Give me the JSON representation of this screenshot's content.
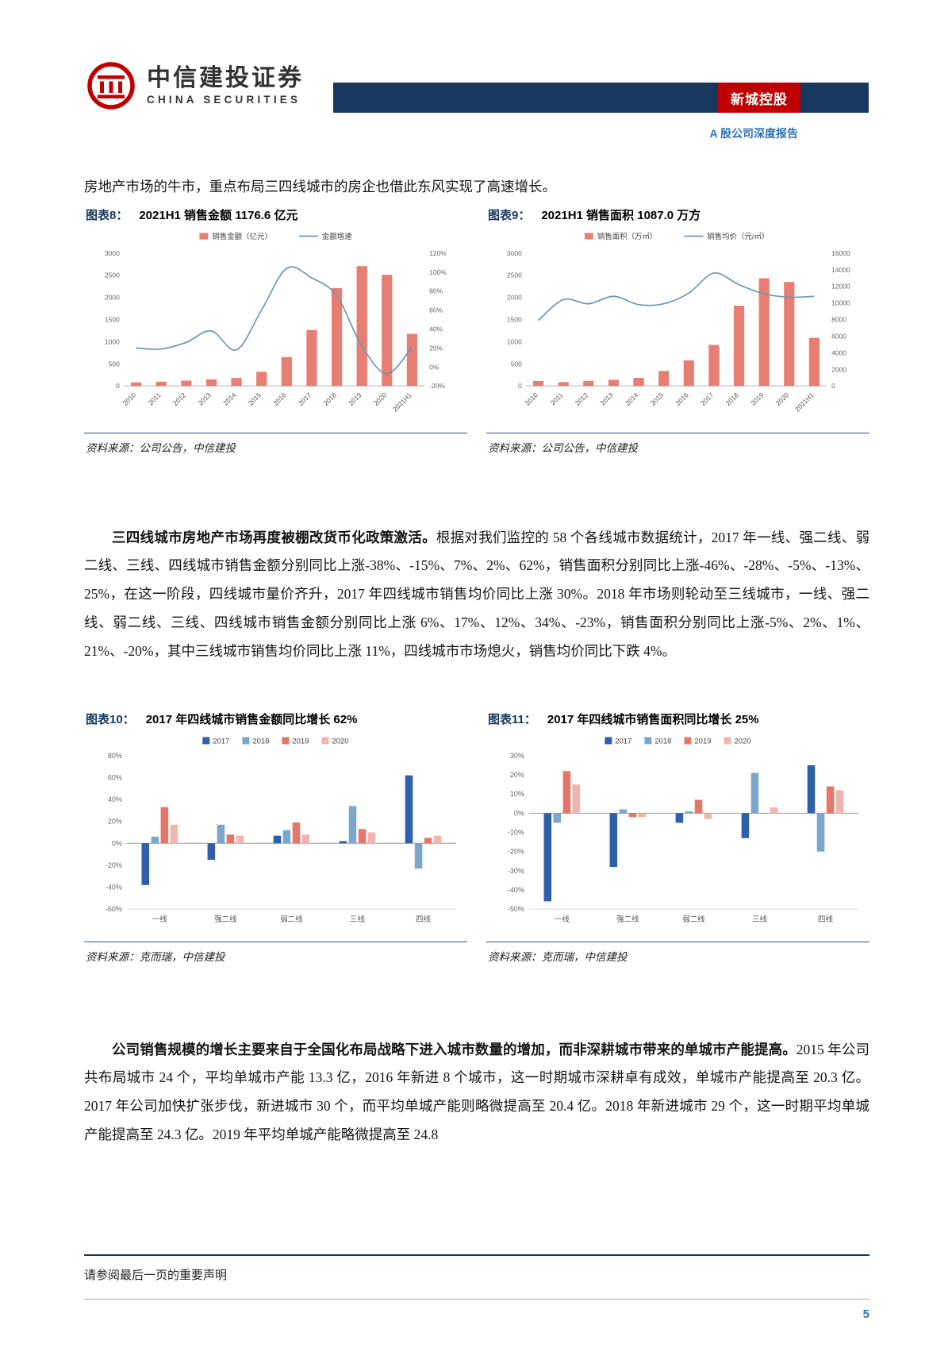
{
  "colors": {
    "navy": "#17375e",
    "badge_red": "#c00000",
    "link_blue": "#2e74b5",
    "bar_red": "#e87e72",
    "line_blue": "#6d96b4",
    "series": [
      "#2e5fa8",
      "#7ba7cb",
      "#e8756a",
      "#f2b5ae"
    ]
  },
  "header": {
    "logo_cn": "中信建投证券",
    "logo_en": "CHINA SECURITIES",
    "stock_name": "新城控股",
    "report_type": "A 股公司深度报告"
  },
  "paragraphs": {
    "p1": "房地产市场的牛市，重点布局三四线城市的房企也借此东风实现了高速增长。",
    "p2_bold": "三四线城市房地产市场再度被棚改货币化政策激活。",
    "p2_rest": "根据对我们监控的 58 个各线城市数据统计，2017 年一线、强二线、弱二线、三线、四线城市销售金额分别同比上涨-38%、-15%、7%、2%、62%，销售面积分别同比上涨-46%、-28%、-5%、-13%、25%，在这一阶段，四线城市量价齐升，2017 年四线城市销售均价同比上涨 30%。2018 年市场则轮动至三线城市，一线、强二线、弱二线、三线、四线城市销售金额分别同比上涨 6%、17%、12%、34%、-23%，销售面积分别同比上涨-5%、2%、1%、21%、-20%，其中三线城市销售均价同比上涨 11%，四线城市市场熄火，销售均价同比下跌 4%。",
    "p3_bold": "公司销售规模的增长主要来自于全国化布局战略下进入城市数量的增加，而非深耕城市带来的单城市产能提高。",
    "p3_rest": "2015 年公司共布局城市 24 个，平均单城市产能 13.3 亿，2016 年新进 8 个城市，这一时期城市深耕卓有成效，单城市产能提高至 20.3 亿。2017 年公司加快扩张步伐，新进城市 30 个，而平均单城产能则略微提高至 20.4 亿。2018 年新进城市 29 个，这一时期平均单城产能提高至 24.3 亿。2019 年平均单城产能略微提高至 24.8"
  },
  "footer": {
    "disclaimer": "请参阅最后一页的重要声明",
    "page_number": "5"
  },
  "chart_data": [
    {
      "type": "combo-bar-line",
      "title_prefix": "图表8：",
      "title": "2021H1 销售金额 1176.6 亿元",
      "categories": [
        "2010",
        "2011",
        "2012",
        "2013",
        "2014",
        "2015",
        "2016",
        "2017",
        "2018",
        "2019",
        "2020",
        "2021H1"
      ],
      "bar_series": {
        "name": "销售金额（亿元）",
        "values": [
          80,
          95,
          120,
          150,
          180,
          319,
          651,
          1265,
          2211,
          2708,
          2510,
          1177
        ]
      },
      "line_series": {
        "name": "金额增速",
        "values": [
          20,
          19,
          26,
          38,
          18,
          60,
          104,
          94,
          75,
          22,
          -7,
          21
        ]
      },
      "left_axis": {
        "min": 0,
        "max": 3000,
        "step": 500,
        "format": "int"
      },
      "right_axis": {
        "min": -20,
        "max": 120,
        "step": 20,
        "format": "pct"
      },
      "source": "资料来源：公司公告，中信建投"
    },
    {
      "type": "combo-bar-line",
      "title_prefix": "图表9：",
      "title": "2021H1 销售面积 1087.0 万方",
      "categories": [
        "2010",
        "2011",
        "2012",
        "2013",
        "2014",
        "2015",
        "2016",
        "2017",
        "2018",
        "2019",
        "2020",
        "2021H1"
      ],
      "bar_series": {
        "name": "销售面积（万㎡）",
        "values": [
          110,
          85,
          115,
          140,
          183,
          340,
          580,
          928,
          1812,
          2432,
          2349,
          1087
        ]
      },
      "line_series": {
        "name": "销售均价（元/㎡）",
        "values": [
          7900,
          10400,
          9900,
          10800,
          9800,
          9900,
          11200,
          13600,
          12200,
          11100,
          10700,
          10800
        ]
      },
      "left_axis": {
        "min": 0,
        "max": 3000,
        "step": 500,
        "format": "int"
      },
      "right_axis": {
        "min": 0,
        "max": 16000,
        "step": 2000,
        "format": "int"
      },
      "source": "资料来源：公司公告，中信建投"
    },
    {
      "type": "grouped-bar",
      "title_prefix": "图表10：",
      "title": "2017 年四线城市销售金额同比增长 62%",
      "categories": [
        "一线",
        "强二线",
        "弱二线",
        "三线",
        "四线"
      ],
      "series": [
        {
          "name": "2017",
          "values": [
            -38,
            -15,
            7,
            2,
            62
          ]
        },
        {
          "name": "2018",
          "values": [
            6,
            17,
            12,
            34,
            -23
          ]
        },
        {
          "name": "2019",
          "values": [
            33,
            8,
            19,
            13,
            5
          ]
        },
        {
          "name": "2020",
          "values": [
            17,
            7,
            8,
            10,
            7
          ]
        }
      ],
      "y_axis": {
        "min": -60,
        "max": 80,
        "step": 20,
        "format": "pct"
      },
      "source": "资料来源：克而瑞，中信建投"
    },
    {
      "type": "grouped-bar",
      "title_prefix": "图表11：",
      "title": "2017 年四线城市销售面积同比增长 25%",
      "categories": [
        "一线",
        "强二线",
        "弱二线",
        "三线",
        "四线"
      ],
      "series": [
        {
          "name": "2017",
          "values": [
            -46,
            -28,
            -5,
            -13,
            25
          ]
        },
        {
          "name": "2018",
          "values": [
            -5,
            2,
            1,
            21,
            -20
          ]
        },
        {
          "name": "2019",
          "values": [
            22,
            -2,
            7,
            0,
            14
          ]
        },
        {
          "name": "2020",
          "values": [
            15,
            -2,
            -3,
            3,
            12
          ]
        }
      ],
      "y_axis": {
        "min": -50,
        "max": 30,
        "step": 10,
        "format": "pct"
      },
      "source": "资料来源：克而瑞，中信建投"
    }
  ]
}
